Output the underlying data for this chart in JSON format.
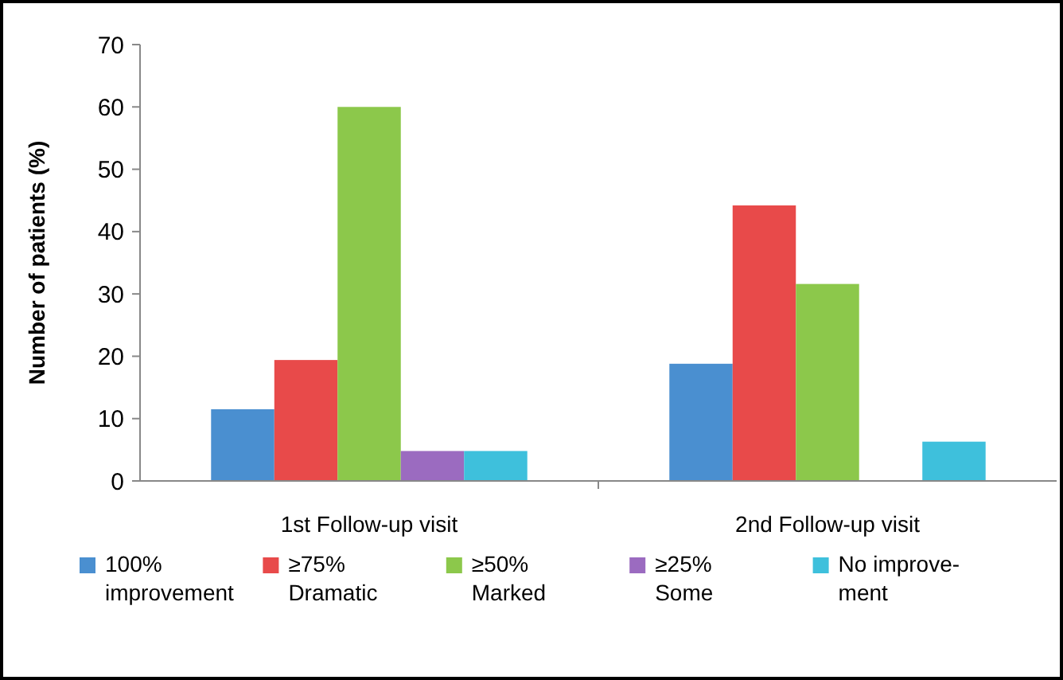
{
  "chart_data": {
    "type": "bar",
    "ylabel": "Number of patients (%)",
    "categories": [
      "1st Follow-up visit",
      "2nd Follow-up visit"
    ],
    "series": [
      {
        "name": "100%\nimprovement",
        "color": "#4a8fd0",
        "values": [
          11.5,
          18.8
        ]
      },
      {
        "name": "≥75%\nDramatic",
        "color": "#e84a4a",
        "values": [
          19.4,
          44.2
        ]
      },
      {
        "name": "≥50%\nMarked",
        "color": "#8cc84b",
        "values": [
          60,
          31.6
        ]
      },
      {
        "name": "≥25%\nSome",
        "color": "#9b6bc0",
        "values": [
          4.8,
          0
        ]
      },
      {
        "name": "No improve-\nment",
        "color": "#3ec0dc",
        "values": [
          4.8,
          6.3
        ]
      }
    ],
    "ylim": [
      0,
      70
    ],
    "yticks": [
      0,
      10,
      20,
      30,
      40,
      50,
      60,
      70
    ],
    "grid": false,
    "legend": "bottom"
  }
}
